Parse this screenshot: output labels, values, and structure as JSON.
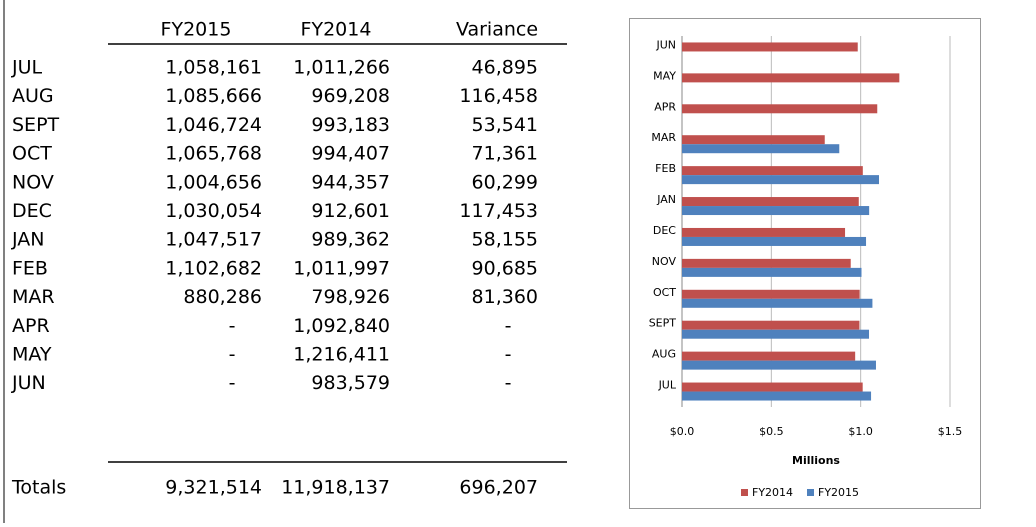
{
  "table": {
    "header": [
      "FY2015",
      "FY2014",
      "Variance"
    ],
    "rows": [
      [
        "JUL",
        "1,058,161",
        "1,011,266",
        "46,895"
      ],
      [
        "AUG",
        "1,085,666",
        "969,208",
        "116,458"
      ],
      [
        "SEPT",
        "1,046,724",
        "993,183",
        "53,541"
      ],
      [
        "OCT",
        "1,065,768",
        "994,407",
        "71,361"
      ],
      [
        "NOV",
        "1,004,656",
        "944,357",
        "60,299"
      ],
      [
        "DEC",
        "1,030,054",
        "912,601",
        "117,453"
      ],
      [
        "JAN",
        "1,047,517",
        "989,362",
        "58,155"
      ],
      [
        "FEB",
        "1,102,682",
        "1,011,997",
        "90,685"
      ],
      [
        "MAR",
        "880,286",
        "798,926",
        "81,360"
      ],
      [
        "APR",
        "-",
        "1,092,840",
        "-"
      ],
      [
        "MAY",
        "-",
        "1,216,411",
        "-"
      ],
      [
        "JUN",
        "-",
        "983,579",
        "-"
      ],
      [
        "Totals",
        "9,321,514",
        "11,918,137",
        "696,207"
      ]
    ]
  },
  "chart_data": {
    "type": "hbar",
    "x_label": "Millions",
    "categories": [
      "JUL",
      "AUG",
      "SEPT",
      "OCT",
      "NOV",
      "DEC",
      "JAN",
      "FEB",
      "MAR",
      "APR",
      "MAY",
      "JUN"
    ],
    "series": [
      {
        "name": "FY2014",
        "color": "#c0504d",
        "values": [
          1.011266,
          0.969208,
          0.993183,
          0.994407,
          0.944357,
          0.912601,
          0.989362,
          1.011997,
          0.798926,
          1.09284,
          1.216411,
          0.983579
        ]
      },
      {
        "name": "FY2015",
        "color": "#4f81bd",
        "values": [
          1.058161,
          1.085666,
          1.046724,
          1.065768,
          1.004656,
          1.030054,
          1.047517,
          1.102682,
          0.880286,
          null,
          null,
          null
        ]
      }
    ],
    "xlim": [
      0,
      1.5
    ],
    "xticks": [
      {
        "value": 0,
        "label": "$0.0"
      },
      {
        "value": 0.5,
        "label": "$0.5"
      },
      {
        "value": 1,
        "label": "$1.0"
      },
      {
        "value": 1.5,
        "label": "$1.5"
      }
    ],
    "grid": true,
    "legend": "bottom"
  }
}
